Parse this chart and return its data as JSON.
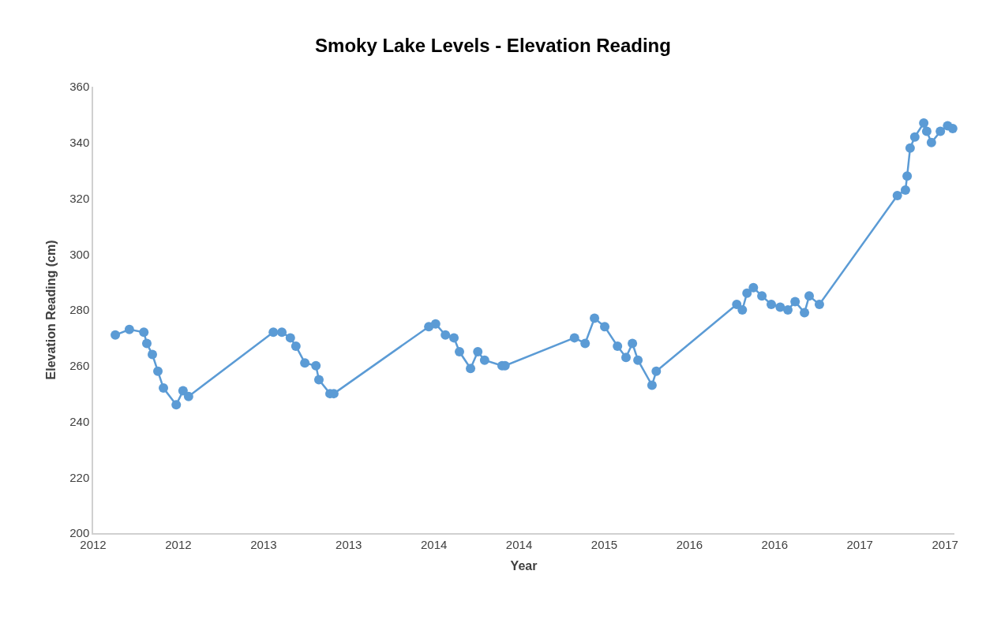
{
  "chart_data": {
    "type": "line",
    "title": "Smoky Lake Levels - Elevation Reading",
    "xlabel": "Year",
    "ylabel": "Elevation Reading (cm)",
    "x": [
      "2012-05-06",
      "2012-06-08",
      "2012-07-12",
      "2012-07-19",
      "2012-08-01",
      "2012-08-14",
      "2012-08-27",
      "2012-09-26",
      "2012-10-12",
      "2012-10-25",
      "2013-05-12",
      "2013-06-01",
      "2013-06-21",
      "2013-07-04",
      "2013-07-25",
      "2013-08-20",
      "2013-08-27",
      "2013-09-22",
      "2013-10-01",
      "2014-05-12",
      "2014-05-28",
      "2014-06-20",
      "2014-07-10",
      "2014-07-23",
      "2014-08-18",
      "2014-09-04",
      "2014-09-20",
      "2014-10-31",
      "2014-11-07",
      "2015-04-19",
      "2015-05-14",
      "2015-06-05",
      "2015-06-29",
      "2015-07-29",
      "2015-08-18",
      "2015-09-02",
      "2015-09-15",
      "2015-10-18",
      "2015-10-28",
      "2016-05-04",
      "2016-05-17",
      "2016-05-28",
      "2016-06-12",
      "2016-07-02",
      "2016-07-24",
      "2016-08-14",
      "2016-09-01",
      "2016-09-18",
      "2016-10-10",
      "2016-10-21",
      "2016-11-14",
      "2017-05-16",
      "2017-06-04",
      "2017-06-08",
      "2017-06-15",
      "2017-06-26",
      "2017-07-17",
      "2017-07-24",
      "2017-08-04",
      "2017-08-25",
      "2017-09-11",
      "2017-09-23"
    ],
    "series": [
      {
        "color": "#5b9bd5",
        "values": [
          271,
          273,
          272,
          268,
          264,
          258,
          252,
          246,
          251,
          249,
          272,
          272,
          270,
          267,
          261,
          260,
          255,
          250,
          250,
          274,
          275,
          271,
          270,
          265,
          259,
          265,
          262,
          260,
          260,
          270,
          268,
          277,
          274,
          267,
          263,
          268,
          262,
          253,
          258,
          282,
          280,
          286,
          288,
          285,
          282,
          281,
          280,
          283,
          279,
          285,
          282,
          321,
          323,
          328,
          338,
          342,
          347,
          344,
          340,
          344,
          346,
          345
        ]
      }
    ],
    "xlim": [
      "2012-03-15",
      "2017-09-27"
    ],
    "xticks": [
      {
        "value": "2012-03-15",
        "label": "2012"
      },
      {
        "value": "2012-10-01",
        "label": "2012"
      },
      {
        "value": "2013-04-19",
        "label": "2013"
      },
      {
        "value": "2013-11-05",
        "label": "2013"
      },
      {
        "value": "2014-05-24",
        "label": "2014"
      },
      {
        "value": "2014-12-10",
        "label": "2014"
      },
      {
        "value": "2015-06-28",
        "label": "2015"
      },
      {
        "value": "2016-01-14",
        "label": "2016"
      },
      {
        "value": "2016-08-01",
        "label": "2016"
      },
      {
        "value": "2017-02-17",
        "label": "2017"
      },
      {
        "value": "2017-09-05",
        "label": "2017"
      }
    ],
    "ylim": [
      200,
      360
    ],
    "yticks": [
      200,
      220,
      240,
      260,
      280,
      300,
      320,
      340,
      360
    ],
    "marker": "circle",
    "line_style": "solid"
  }
}
